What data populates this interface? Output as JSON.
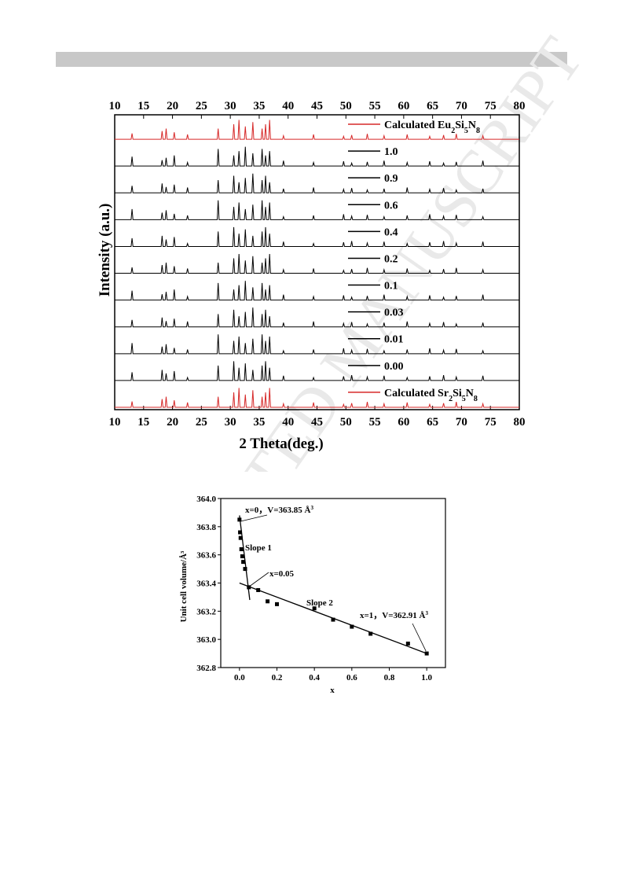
{
  "chart_data": [
    {
      "type": "line",
      "title": "",
      "xlabel": "2 Theta(deg.)",
      "ylabel": "Intensity (a.u.)",
      "xlim": [
        10,
        80
      ],
      "xticks": [
        "10",
        "15",
        "20",
        "25",
        "30",
        "35",
        "40",
        "45",
        "50",
        "55",
        "60",
        "65",
        "70",
        "75",
        "80"
      ],
      "grid": false,
      "legend": "top-right, one entry per stacked pattern",
      "peak_positions_deg": [
        13.0,
        18.2,
        18.9,
        20.3,
        22.6,
        27.9,
        30.6,
        31.5,
        32.6,
        33.9,
        35.5,
        36.1,
        36.8,
        39.2,
        44.4,
        49.6,
        51.0,
        53.7,
        56.6,
        60.6,
        64.5,
        66.9,
        69.1,
        73.7
      ],
      "series": [
        {
          "label_base": "Calculated Eu",
          "label_sub1": "2",
          "label_mid1": "Si",
          "label_sub2": "5",
          "label_mid2": "N",
          "label_sub3": "8",
          "color": "#d62828"
        },
        {
          "name": "1.0",
          "color": "#000000"
        },
        {
          "name": "0.9",
          "color": "#000000"
        },
        {
          "name": "0.6",
          "color": "#000000"
        },
        {
          "name": "0.4",
          "color": "#000000"
        },
        {
          "name": "0.2",
          "color": "#000000"
        },
        {
          "name": "0.1",
          "color": "#000000"
        },
        {
          "name": "0.03",
          "color": "#000000"
        },
        {
          "name": "0.01",
          "color": "#000000"
        },
        {
          "name": "0.00",
          "color": "#000000"
        },
        {
          "label_base": "Calculated Sr",
          "label_sub1": "2",
          "label_mid1": "Si",
          "label_sub2": "5",
          "label_mid2": "N",
          "label_sub3": "8",
          "color": "#d62828"
        }
      ]
    },
    {
      "type": "scatter",
      "title": "",
      "xlabel": "x",
      "ylabel": "Unit cell volume/Å³",
      "xlim": [
        -0.1,
        1.1
      ],
      "ylim": [
        362.8,
        364.0
      ],
      "xticks": [
        "0.0",
        "0.2",
        "0.4",
        "0.6",
        "0.8",
        "1.0"
      ],
      "yticks": [
        "362.8",
        "363.0",
        "363.2",
        "363.4",
        "363.6",
        "363.8",
        "364.0"
      ],
      "grid": false,
      "points": [
        {
          "x": 0.0,
          "y": 363.85
        },
        {
          "x": 0.003,
          "y": 363.76
        },
        {
          "x": 0.006,
          "y": 363.72
        },
        {
          "x": 0.01,
          "y": 363.64
        },
        {
          "x": 0.015,
          "y": 363.59
        },
        {
          "x": 0.02,
          "y": 363.55
        },
        {
          "x": 0.03,
          "y": 363.5
        },
        {
          "x": 0.05,
          "y": 363.37
        },
        {
          "x": 0.1,
          "y": 363.35
        },
        {
          "x": 0.15,
          "y": 363.27
        },
        {
          "x": 0.2,
          "y": 363.25
        },
        {
          "x": 0.4,
          "y": 363.22
        },
        {
          "x": 0.5,
          "y": 363.14
        },
        {
          "x": 0.6,
          "y": 363.09
        },
        {
          "x": 0.7,
          "y": 363.04
        },
        {
          "x": 0.9,
          "y": 362.97
        },
        {
          "x": 1.0,
          "y": 362.9
        }
      ],
      "fit_lines": [
        {
          "name": "Slope 1",
          "x": [
            0.0,
            0.055
          ],
          "y": [
            363.88,
            363.28
          ]
        },
        {
          "name": "Slope 2",
          "x": [
            0.0,
            1.0
          ],
          "y": [
            363.4,
            362.9
          ]
        }
      ],
      "annotations": [
        {
          "text": "x=0，V=363.85 Å",
          "sup": "3"
        },
        {
          "text": "Slope 1"
        },
        {
          "text": "x=0.05"
        },
        {
          "text": "Slope 2"
        },
        {
          "text": "x=1，V=362.91 Å",
          "sup": "3"
        }
      ]
    }
  ]
}
